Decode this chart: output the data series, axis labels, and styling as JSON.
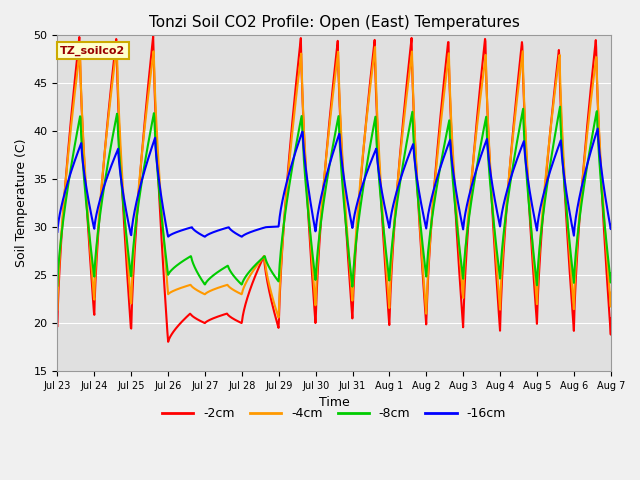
{
  "title": "Tonzi Soil CO2 Profile: Open (East) Temperatures",
  "xlabel": "Time",
  "ylabel": "Soil Temperature (C)",
  "ylim": [
    15,
    50
  ],
  "xlim": [
    0,
    15
  ],
  "legend_label": "TZ_soilco2",
  "series_labels": [
    "-2cm",
    "-4cm",
    "-8cm",
    "-16cm"
  ],
  "series_colors": [
    "#ff0000",
    "#ff9900",
    "#00cc00",
    "#0000ff"
  ],
  "plot_bg_color": "#e0e0e0",
  "fig_bg_color": "#f0f0f0",
  "x_tick_labels": [
    "Jul 23",
    "Jul 24",
    "Jul 25",
    "Jul 26",
    "Jul 27",
    "Jul 28",
    "Jul 29",
    "Jul 30",
    "Jul 31",
    "Aug 1",
    "Aug 2",
    "Aug 3",
    "Aug 4",
    "Aug 5",
    "Aug 6",
    "Aug 7"
  ],
  "yticks": [
    15,
    20,
    25,
    30,
    35,
    40,
    45,
    50
  ],
  "grid_color": "#ffffff",
  "linewidth": 1.5
}
